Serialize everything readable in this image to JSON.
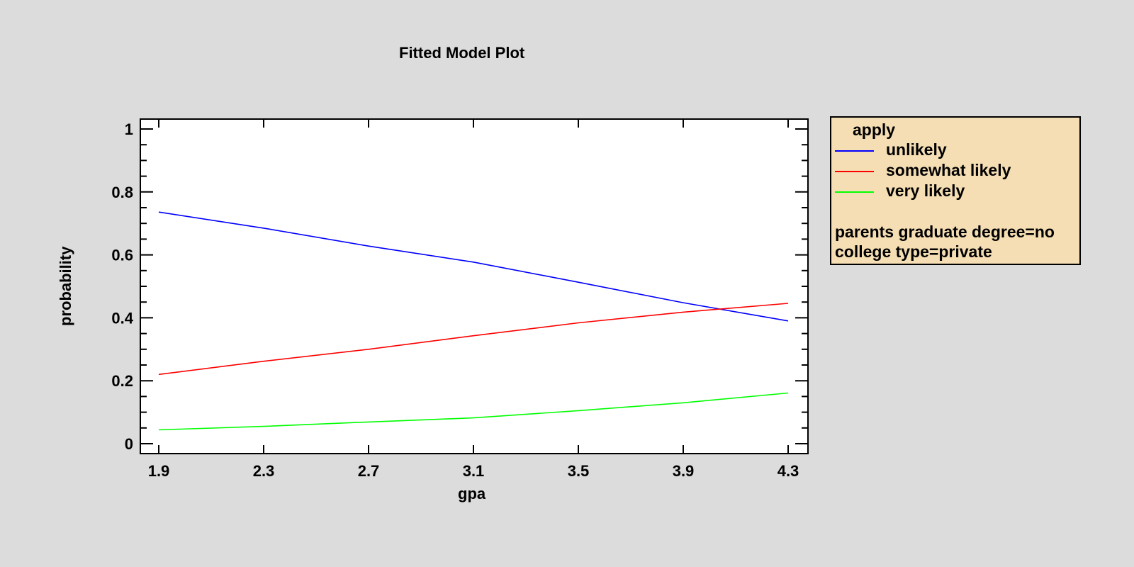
{
  "title": "Fitted Model Plot",
  "xlabel": "gpa",
  "ylabel": "probability",
  "legend": {
    "title": "apply",
    "items": [
      {
        "label": "unlikely",
        "color": "#0000ff"
      },
      {
        "label": "somewhat likely",
        "color": "#ff0000"
      },
      {
        "label": "very likely",
        "color": "#00ff00"
      }
    ],
    "notes": [
      "parents graduate degree=no",
      "college type=private"
    ]
  },
  "chart_data": {
    "type": "line",
    "title": "Fitted Model Plot",
    "xlabel": "gpa",
    "ylabel": "probability",
    "x": [
      1.9,
      2.3,
      2.7,
      3.1,
      3.5,
      3.9,
      4.3
    ],
    "xticks": [
      "1.9",
      "2.3",
      "2.7",
      "3.1",
      "3.5",
      "3.9",
      "4.3"
    ],
    "yticks": [
      "0",
      "0.2",
      "0.4",
      "0.6",
      "0.8",
      "1"
    ],
    "xlim": [
      1.84,
      4.37
    ],
    "ylim": [
      -0.03,
      1.03
    ],
    "grid": false,
    "legend_position": "right",
    "legend_title": "apply",
    "series": [
      {
        "name": "unlikely",
        "color": "#0000ff",
        "values": [
          0.736,
          0.685,
          0.628,
          0.577,
          0.513,
          0.448,
          0.39
        ]
      },
      {
        "name": "somewhat likely",
        "color": "#ff0000",
        "values": [
          0.22,
          0.262,
          0.3,
          0.343,
          0.384,
          0.418,
          0.446
        ]
      },
      {
        "name": "very likely",
        "color": "#00ff00",
        "values": [
          0.044,
          0.055,
          0.069,
          0.082,
          0.105,
          0.13,
          0.161
        ]
      }
    ],
    "annotations": [
      "parents graduate degree=no",
      "college type=private"
    ]
  }
}
